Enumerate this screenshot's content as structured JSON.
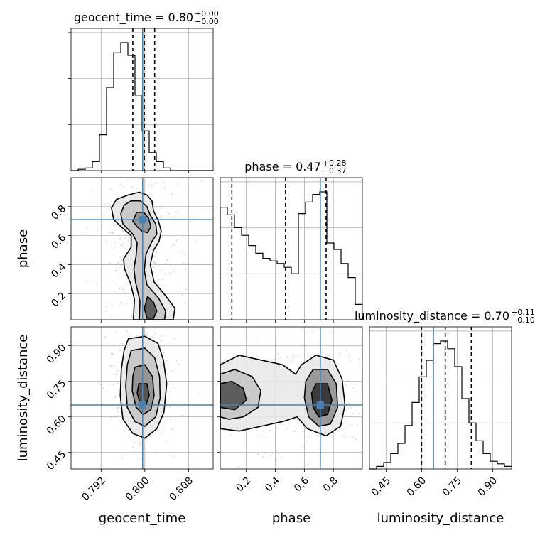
{
  "chart_data": {
    "type": "corner",
    "parameters": [
      "geocent_time",
      "phase",
      "luminosity_distance"
    ],
    "truths": {
      "geocent_time": 0.7996,
      "phase": 0.71,
      "luminosity_distance": 0.65
    },
    "axes": {
      "geocent_time": {
        "range": [
          0.7865,
          0.8125
        ],
        "ticks": [
          0.792,
          0.8,
          0.808
        ],
        "tick_labels": [
          "0.792",
          "0.800",
          "0.808"
        ],
        "label": "geocent_time"
      },
      "phase": {
        "range": [
          0.02,
          1.0
        ],
        "ticks": [
          0.2,
          0.4,
          0.6,
          0.8
        ],
        "tick_labels": [
          "0.2",
          "0.4",
          "0.6",
          "0.8"
        ],
        "label": "phase"
      },
      "luminosity_distance": {
        "range": [
          0.38,
          0.98
        ],
        "ticks": [
          0.45,
          0.6,
          0.75,
          0.9
        ],
        "tick_labels": [
          "0.45",
          "0.60",
          "0.75",
          "0.90"
        ],
        "label": "luminosity_distance"
      }
    },
    "titles": [
      {
        "param": "geocent_time",
        "text": "geocent_time = 0.80",
        "sup": "+0.00",
        "sub": "−0.00"
      },
      {
        "param": "phase",
        "text": "phase = 0.47",
        "sup": "+0.28",
        "sub": "−0.37"
      },
      {
        "param": "luminosity_distance",
        "text": "luminosity_distance = 0.70",
        "sup": "+0.11",
        "sub": "−0.10"
      }
    ],
    "marginals": [
      {
        "param": "geocent_time",
        "quantiles": [
          0.7978,
          0.7999,
          0.8018
        ],
        "bin_edges": [
          0.7865,
          0.7878,
          0.7891,
          0.7904,
          0.7917,
          0.793,
          0.7943,
          0.7956,
          0.7969,
          0.7982,
          0.7995,
          0.8008,
          0.8021,
          0.8034,
          0.8047,
          0.806,
          0.8073,
          0.8086,
          0.8099,
          0.8112,
          0.8125
        ],
        "counts": [
          0.0,
          0.01,
          0.02,
          0.07,
          0.28,
          0.65,
          0.92,
          1.0,
          0.9,
          0.59,
          0.31,
          0.14,
          0.07,
          0.02,
          0.0,
          0.0,
          0.0,
          0.0,
          0.0,
          0.0
        ]
      },
      {
        "param": "phase",
        "quantiles": [
          0.1,
          0.47,
          0.75
        ],
        "bin_edges": [
          0.02,
          0.069,
          0.118,
          0.167,
          0.216,
          0.265,
          0.314,
          0.363,
          0.412,
          0.461,
          0.51,
          0.559,
          0.608,
          0.657,
          0.706,
          0.755,
          0.804,
          0.853,
          0.902,
          0.951,
          1.0
        ],
        "counts": [
          0.88,
          0.82,
          0.72,
          0.66,
          0.58,
          0.52,
          0.48,
          0.46,
          0.44,
          0.41,
          0.36,
          0.83,
          0.92,
          0.98,
          1.0,
          0.6,
          0.55,
          0.44,
          0.33,
          0.12
        ]
      },
      {
        "param": "luminosity_distance",
        "quantiles": [
          0.6,
          0.7,
          0.81
        ],
        "bin_edges": [
          0.38,
          0.41,
          0.44,
          0.47,
          0.5,
          0.53,
          0.56,
          0.59,
          0.62,
          0.65,
          0.68,
          0.71,
          0.74,
          0.77,
          0.8,
          0.83,
          0.86,
          0.89,
          0.92,
          0.95,
          0.98
        ],
        "counts": [
          0.0,
          0.02,
          0.05,
          0.12,
          0.2,
          0.34,
          0.52,
          0.72,
          0.85,
          0.98,
          1.0,
          0.94,
          0.8,
          0.55,
          0.36,
          0.22,
          0.12,
          0.06,
          0.04,
          0.02
        ]
      }
    ],
    "joint": [
      {
        "x": "geocent_time",
        "y": "phase",
        "contours": [
          [
            [
              0.7969,
              0.88
            ],
            [
              0.799,
              0.9
            ],
            [
              0.8004,
              0.88
            ],
            [
              0.8013,
              0.84
            ],
            [
              0.8016,
              0.77
            ],
            [
              0.8025,
              0.7
            ],
            [
              0.803,
              0.63
            ],
            [
              0.8026,
              0.56
            ],
            [
              0.8016,
              0.5
            ],
            [
              0.801,
              0.4
            ],
            [
              0.8017,
              0.28
            ],
            [
              0.8037,
              0.19
            ],
            [
              0.8055,
              0.1
            ],
            [
              0.8052,
              0.02
            ],
            [
              0.7979,
              0.02
            ],
            [
              0.7981,
              0.16
            ],
            [
              0.7974,
              0.27
            ],
            [
              0.7963,
              0.37
            ],
            [
              0.7961,
              0.44
            ],
            [
              0.7975,
              0.52
            ],
            [
              0.7975,
              0.6
            ],
            [
              0.796,
              0.65
            ],
            [
              0.7943,
              0.71
            ],
            [
              0.7939,
              0.79
            ],
            [
              0.7948,
              0.85
            ]
          ],
          [
            [
              0.7975,
              0.84
            ],
            [
              0.7992,
              0.84
            ],
            [
              0.8004,
              0.8
            ],
            [
              0.801,
              0.74
            ],
            [
              0.802,
              0.68
            ],
            [
              0.8022,
              0.61
            ],
            [
              0.8013,
              0.56
            ],
            [
              0.8002,
              0.47
            ],
            [
              0.7999,
              0.36
            ],
            [
              0.8004,
              0.26
            ],
            [
              0.8025,
              0.17
            ],
            [
              0.8038,
              0.08
            ],
            [
              0.8036,
              0.02
            ],
            [
              0.799,
              0.02
            ],
            [
              0.7991,
              0.15
            ],
            [
              0.7983,
              0.28
            ],
            [
              0.798,
              0.37
            ],
            [
              0.7984,
              0.46
            ],
            [
              0.7986,
              0.55
            ],
            [
              0.7978,
              0.61
            ],
            [
              0.796,
              0.68
            ],
            [
              0.7956,
              0.75
            ],
            [
              0.7962,
              0.81
            ]
          ],
          [
            [
              0.7985,
              0.76
            ],
            [
              0.7998,
              0.76
            ],
            [
              0.8007,
              0.72
            ],
            [
              0.8011,
              0.66
            ],
            [
              0.8005,
              0.62
            ],
            [
              0.7995,
              0.63
            ],
            [
              0.7986,
              0.66
            ],
            [
              0.7978,
              0.7
            ]
          ],
          [
            [
              0.8005,
              0.18
            ],
            [
              0.8016,
              0.14
            ],
            [
              0.8022,
              0.08
            ],
            [
              0.8016,
              0.03
            ],
            [
              0.8004,
              0.03
            ],
            [
              0.7999,
              0.1
            ]
          ]
        ]
      },
      {
        "x": "geocent_time",
        "y": "luminosity_distance",
        "contours": [
          [
            [
              0.797,
              0.93
            ],
            [
              0.8,
              0.94
            ],
            [
              0.8024,
              0.91
            ],
            [
              0.8034,
              0.84
            ],
            [
              0.804,
              0.74
            ],
            [
              0.8035,
              0.62
            ],
            [
              0.8022,
              0.55
            ],
            [
              0.8,
              0.51
            ],
            [
              0.7978,
              0.53
            ],
            [
              0.796,
              0.59
            ],
            [
              0.7955,
              0.69
            ],
            [
              0.7957,
              0.8
            ],
            [
              0.7962,
              0.88
            ]
          ],
          [
            [
              0.7975,
              0.88
            ],
            [
              0.8,
              0.89
            ],
            [
              0.8018,
              0.85
            ],
            [
              0.8027,
              0.77
            ],
            [
              0.8028,
              0.68
            ],
            [
              0.802,
              0.6
            ],
            [
              0.8,
              0.56
            ],
            [
              0.7982,
              0.58
            ],
            [
              0.7968,
              0.64
            ],
            [
              0.7965,
              0.73
            ],
            [
              0.7968,
              0.82
            ]
          ],
          [
            [
              0.7982,
              0.81
            ],
            [
              0.8,
              0.82
            ],
            [
              0.8014,
              0.77
            ],
            [
              0.8017,
              0.69
            ],
            [
              0.8011,
              0.63
            ],
            [
              0.7997,
              0.61
            ],
            [
              0.7984,
              0.64
            ],
            [
              0.7977,
              0.71
            ],
            [
              0.7978,
              0.77
            ]
          ],
          [
            [
              0.7989,
              0.74
            ],
            [
              0.8004,
              0.74
            ],
            [
              0.8008,
              0.69
            ],
            [
              0.8002,
              0.65
            ],
            [
              0.7991,
              0.66
            ],
            [
              0.7986,
              0.7
            ]
          ]
        ]
      },
      {
        "x": "phase",
        "y": "luminosity_distance",
        "contours": [
          [
            [
              0.02,
              0.82
            ],
            [
              0.15,
              0.86
            ],
            [
              0.3,
              0.84
            ],
            [
              0.45,
              0.82
            ],
            [
              0.54,
              0.78
            ],
            [
              0.58,
              0.82
            ],
            [
              0.68,
              0.86
            ],
            [
              0.8,
              0.84
            ],
            [
              0.86,
              0.76
            ],
            [
              0.88,
              0.65
            ],
            [
              0.85,
              0.56
            ],
            [
              0.75,
              0.52
            ],
            [
              0.62,
              0.55
            ],
            [
              0.55,
              0.6
            ],
            [
              0.45,
              0.58
            ],
            [
              0.3,
              0.56
            ],
            [
              0.15,
              0.54
            ],
            [
              0.02,
              0.55
            ]
          ],
          [
            [
              0.02,
              0.78
            ],
            [
              0.12,
              0.8
            ],
            [
              0.24,
              0.77
            ],
            [
              0.3,
              0.71
            ],
            [
              0.28,
              0.64
            ],
            [
              0.18,
              0.6
            ],
            [
              0.08,
              0.59
            ],
            [
              0.02,
              0.6
            ]
          ],
          [
            [
              0.66,
              0.8
            ],
            [
              0.76,
              0.8
            ],
            [
              0.82,
              0.74
            ],
            [
              0.83,
              0.64
            ],
            [
              0.78,
              0.57
            ],
            [
              0.7,
              0.56
            ],
            [
              0.63,
              0.6
            ],
            [
              0.6,
              0.68
            ],
            [
              0.61,
              0.75
            ]
          ],
          [
            [
              0.02,
              0.74
            ],
            [
              0.1,
              0.75
            ],
            [
              0.18,
              0.72
            ],
            [
              0.2,
              0.67
            ],
            [
              0.12,
              0.63
            ],
            [
              0.02,
              0.64
            ]
          ],
          [
            [
              0.68,
              0.74
            ],
            [
              0.76,
              0.74
            ],
            [
              0.79,
              0.67
            ],
            [
              0.76,
              0.61
            ],
            [
              0.7,
              0.6
            ],
            [
              0.66,
              0.64
            ],
            [
              0.65,
              0.7
            ]
          ]
        ]
      }
    ]
  }
}
